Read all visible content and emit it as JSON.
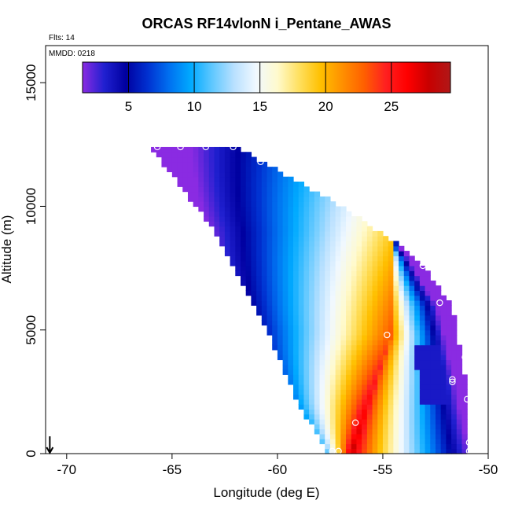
{
  "chart_data": {
    "type": "heatmap",
    "title": "ORCAS RF14vlonN i_Pentane_AWAS",
    "flts_note": "Flts: 14",
    "mmdd_note": "MMDD: 0218",
    "xlabel": "Longitude (deg E)",
    "ylabel": "Altitude (m)",
    "xlim": [
      -71,
      -50
    ],
    "ylim": [
      0,
      16500
    ],
    "x_ticks": [
      -70,
      -65,
      -60,
      -55,
      -50
    ],
    "x_tick_labels": [
      "-70",
      "-65",
      "-60",
      "-55",
      "-50"
    ],
    "y_ticks": [
      0,
      5000,
      10000,
      15000
    ],
    "y_tick_labels": [
      "0",
      "5000",
      "10000",
      "15000"
    ],
    "colorbar": {
      "range": [
        1.5,
        29.5
      ],
      "ticks": [
        5,
        10,
        15,
        20,
        25
      ],
      "tick_labels": [
        "5",
        "10",
        "15",
        "20",
        "25"
      ],
      "colors": [
        "#8a2be2",
        "#2020d0",
        "#0000a0",
        "#0030d0",
        "#0070f0",
        "#00aaff",
        "#60c8ff",
        "#b8e0ff",
        "#f0f8ff",
        "#fffacd",
        "#ffe060",
        "#ffc000",
        "#ff9000",
        "#ff6000",
        "#ff2020",
        "#ff0000",
        "#c80000",
        "#b01818"
      ]
    },
    "region": {
      "top_altitude": 12400,
      "left_edge": [
        {
          "alt": 12400,
          "lon": -66.0
        },
        {
          "alt": 9000,
          "lon": -63.0
        },
        {
          "alt": 5000,
          "lon": -60.5
        },
        {
          "alt": 2000,
          "lon": -59.0
        },
        {
          "alt": 0,
          "lon": -57.6
        }
      ],
      "right_edge": [
        {
          "alt": 12400,
          "lon": -62.0
        },
        {
          "alt": 10000,
          "lon": -57.0
        },
        {
          "alt": 8000,
          "lon": -53.5
        },
        {
          "alt": 6000,
          "lon": -51.7
        },
        {
          "alt": 3000,
          "lon": -51.1
        },
        {
          "alt": 0,
          "lon": -51.0
        }
      ],
      "core": {
        "lon": -56.5,
        "alt": 1800,
        "value": 27
      },
      "bend": {
        "lon": -54.6,
        "alt": 4800
      }
    },
    "sample_points": [
      {
        "lon": -65.7,
        "alt": 12400
      },
      {
        "lon": -64.6,
        "alt": 12400
      },
      {
        "lon": -63.4,
        "alt": 12400
      },
      {
        "lon": -62.1,
        "alt": 12400
      },
      {
        "lon": -60.8,
        "alt": 11800
      },
      {
        "lon": -53.1,
        "alt": 7600
      },
      {
        "lon": -52.3,
        "alt": 6100
      },
      {
        "lon": -51.2,
        "alt": 5900
      },
      {
        "lon": -54.8,
        "alt": 4800
      },
      {
        "lon": -51.1,
        "alt": 3900
      },
      {
        "lon": -51.7,
        "alt": 3000
      },
      {
        "lon": -51.7,
        "alt": 2900
      },
      {
        "lon": -51.0,
        "alt": 2200
      },
      {
        "lon": -56.3,
        "alt": 1250
      },
      {
        "lon": -50.9,
        "alt": 450
      },
      {
        "lon": -50.9,
        "alt": 100
      },
      {
        "lon": -57.4,
        "alt": 100
      },
      {
        "lon": -57.1,
        "alt": 100
      }
    ],
    "arrow": {
      "lon": -70.8,
      "alt_from": 700,
      "alt_to": 0
    }
  }
}
